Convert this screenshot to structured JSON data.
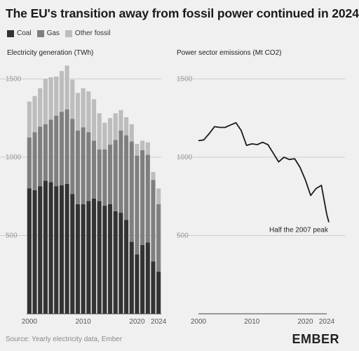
{
  "title": "The EU's transition away from fossil power continued in 2024",
  "legend": [
    {
      "label": "Coal",
      "color": "#333333"
    },
    {
      "label": "Gas",
      "color": "#7f7f7f"
    },
    {
      "label": "Other fossil",
      "color": "#bdbdbd"
    }
  ],
  "source": "Source: Yearly electricity data, Ember",
  "logo": "EMBER",
  "chart_data": [
    {
      "type": "bar",
      "stacked": true,
      "title": "Electricity generation (TWh)",
      "categories": [
        2000,
        2001,
        2002,
        2003,
        2004,
        2005,
        2006,
        2007,
        2008,
        2009,
        2010,
        2011,
        2012,
        2013,
        2014,
        2015,
        2016,
        2017,
        2018,
        2019,
        2020,
        2021,
        2022,
        2023,
        2024
      ],
      "series": [
        {
          "name": "Coal",
          "color": "#333333",
          "values": [
            800,
            790,
            815,
            850,
            840,
            815,
            820,
            830,
            765,
            700,
            700,
            720,
            735,
            720,
            690,
            700,
            655,
            645,
            600,
            460,
            380,
            440,
            455,
            335,
            270
          ]
        },
        {
          "name": "Gas",
          "color": "#7f7f7f",
          "values": [
            325,
            370,
            380,
            360,
            400,
            450,
            470,
            475,
            480,
            470,
            490,
            440,
            370,
            330,
            360,
            380,
            455,
            525,
            540,
            640,
            630,
            605,
            560,
            520,
            430
          ]
        },
        {
          "name": "Other fossil",
          "color": "#bdbdbd",
          "values": [
            230,
            230,
            245,
            290,
            270,
            250,
            260,
            280,
            250,
            240,
            250,
            260,
            265,
            230,
            170,
            170,
            170,
            130,
            115,
            110,
            75,
            60,
            80,
            50,
            100
          ]
        }
      ],
      "ylim": [
        0,
        1600
      ],
      "yticks": [
        500,
        1000,
        1500
      ],
      "xtick_labels": [
        "2000",
        "2010",
        "2020",
        "2024"
      ],
      "grid": true
    },
    {
      "type": "line",
      "title": "Power sector emissions (Mt CO2)",
      "x": [
        2000,
        2001,
        2002,
        2003,
        2004,
        2005,
        2006,
        2007,
        2008,
        2009,
        2010,
        2011,
        2012,
        2013,
        2014,
        2015,
        2016,
        2017,
        2018,
        2019,
        2020,
        2021,
        2022,
        2023,
        2024
      ],
      "y": [
        1105,
        1110,
        1150,
        1195,
        1190,
        1190,
        1205,
        1220,
        1170,
        1075,
        1085,
        1080,
        1095,
        1080,
        1025,
        970,
        1000,
        985,
        990,
        935,
        855,
        755,
        800,
        820,
        635
      ],
      "y_extra": [
        585
      ],
      "ylim": [
        0,
        1600
      ],
      "yticks": [
        500,
        1000,
        1500
      ],
      "xtick_labels": [
        "2000",
        "2010",
        "2020",
        "2024"
      ],
      "annotations": [
        {
          "text": "Half the 2007 peak",
          "x": 2024,
          "y": 585
        }
      ],
      "grid": true
    }
  ]
}
